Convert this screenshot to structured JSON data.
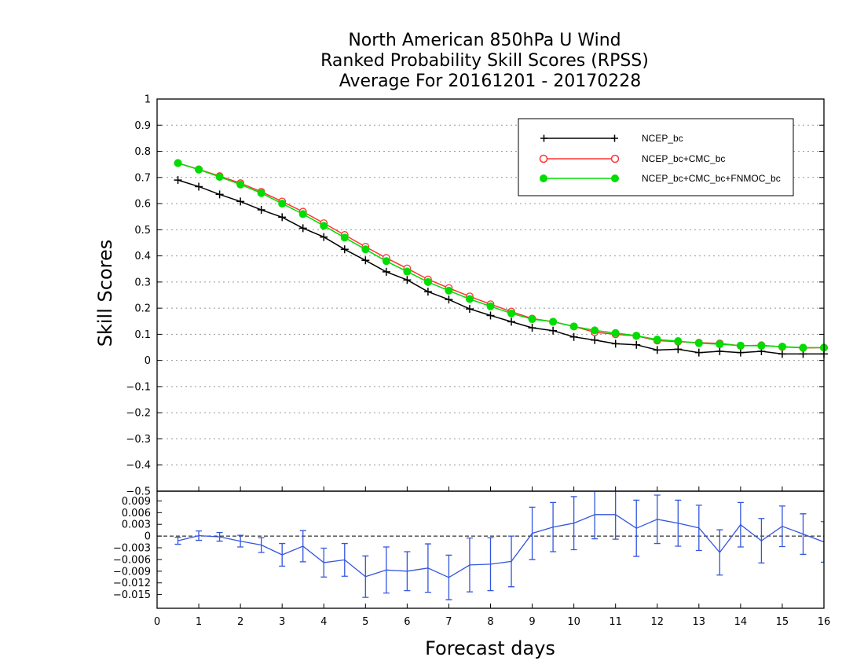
{
  "title_lines": [
    "North American 850hPa U Wind",
    "Ranked Probability Skill Scores (RPSS)",
    "Average For 20161201 - 20170228"
  ],
  "colors": {
    "ncep": "#000000",
    "ncep_cmc": "#ff3333",
    "ncep_cmc_fnmoc": "#00dd00",
    "diff": "#3355dd",
    "grid": "#999999"
  },
  "chart_data": [
    {
      "type": "line",
      "ylabel": "Skill Scores",
      "xlim": [
        0,
        16
      ],
      "ylim": [
        -0.5,
        1
      ],
      "grid": true,
      "legend_placement": "top-right",
      "yticks": [
        "1",
        "0.9",
        "0.8",
        "0.7",
        "0.6",
        "0.5",
        "0.4",
        "0.3",
        "0.2",
        "0.1",
        "0",
        "−0.1",
        "−0.2",
        "−0.3",
        "−0.4",
        "−0.5"
      ],
      "x": [
        0.5,
        1,
        1.5,
        2,
        2.5,
        3,
        3.5,
        4,
        4.5,
        5,
        5.5,
        6,
        6.5,
        7,
        7.5,
        8,
        8.5,
        9,
        9.5,
        10,
        10.5,
        11,
        11.5,
        12,
        12.5,
        13,
        13.5,
        14,
        14.5,
        15,
        15.5,
        16
      ],
      "series": [
        {
          "name": "NCEP_bc",
          "marker": "plus",
          "values": [
            0.69,
            0.665,
            0.635,
            0.608,
            0.576,
            0.548,
            0.506,
            0.472,
            0.425,
            0.383,
            0.339,
            0.308,
            0.263,
            0.233,
            0.197,
            0.172,
            0.148,
            0.125,
            0.114,
            0.09,
            0.078,
            0.064,
            0.06,
            0.04,
            0.043,
            0.03,
            0.035,
            0.03,
            0.035,
            0.025,
            0.025,
            0.025
          ]
        },
        {
          "name": "NCEP_bc+CMC_bc",
          "marker": "open-circle",
          "values": [
            0.755,
            0.731,
            0.705,
            0.678,
            0.645,
            0.608,
            0.569,
            0.525,
            0.48,
            0.435,
            0.392,
            0.352,
            0.31,
            0.277,
            0.245,
            0.215,
            0.187,
            0.16,
            0.148,
            0.13,
            0.108,
            0.1,
            0.094,
            0.076,
            0.072,
            0.068,
            0.065,
            0.056,
            0.058,
            0.052,
            0.048,
            0.049
          ]
        },
        {
          "name": "NCEP_bc+CMC_bc+FNMOC_bc",
          "marker": "filled-circle",
          "values": [
            0.755,
            0.73,
            0.702,
            0.673,
            0.64,
            0.6,
            0.56,
            0.515,
            0.47,
            0.425,
            0.38,
            0.34,
            0.3,
            0.267,
            0.235,
            0.207,
            0.18,
            0.158,
            0.148,
            0.13,
            0.115,
            0.105,
            0.095,
            0.08,
            0.074,
            0.066,
            0.062,
            0.057,
            0.056,
            0.053,
            0.049,
            0.049
          ]
        }
      ]
    },
    {
      "type": "line",
      "xlabel": "Forecast days",
      "xlim": [
        0,
        16
      ],
      "ylim": [
        -0.0185,
        0.0115
      ],
      "xticks": [
        "0",
        "1",
        "2",
        "3",
        "4",
        "5",
        "6",
        "7",
        "8",
        "9",
        "10",
        "11",
        "12",
        "13",
        "14",
        "15",
        "16"
      ],
      "yticks": [
        "0.009",
        "0.006",
        "0.003",
        "0",
        "−0.003",
        "−0.006",
        "−0.009",
        "−0.012",
        "−0.015"
      ],
      "reference_line": 0,
      "x": [
        0.5,
        1,
        1.5,
        2,
        2.5,
        3,
        3.5,
        4,
        4.5,
        5,
        5.5,
        6,
        6.5,
        7,
        7.5,
        8,
        8.5,
        9,
        9.5,
        10,
        10.5,
        11,
        11.5,
        12,
        12.5,
        13,
        13.5,
        14,
        14.5,
        15,
        15.5,
        16
      ],
      "series": [
        {
          "name": "",
          "error_bars": true,
          "values": [
            -0.0012,
            0.0001,
            -0.0002,
            -0.0013,
            -0.0023,
            -0.0048,
            -0.0026,
            -0.0068,
            -0.0061,
            -0.0104,
            -0.0087,
            -0.009,
            -0.0082,
            -0.0106,
            -0.0074,
            -0.0072,
            -0.0065,
            0.0007,
            0.0023,
            0.0033,
            0.0055,
            0.0055,
            0.002,
            0.0043,
            0.0033,
            0.0021,
            -0.0042,
            0.0029,
            -0.0012,
            0.0025,
            0.0005,
            -0.0015
          ],
          "errors": [
            0.0009,
            0.0012,
            0.0011,
            0.0015,
            0.0019,
            0.0029,
            0.004,
            0.0037,
            0.0042,
            0.0053,
            0.0059,
            0.005,
            0.0062,
            0.0057,
            0.0069,
            0.0068,
            0.0065,
            0.0067,
            0.0063,
            0.0068,
            0.0062,
            0.0063,
            0.0072,
            0.0062,
            0.0059,
            0.0058,
            0.0058,
            0.0057,
            0.0057,
            0.0052,
            0.0052,
            0.0052
          ]
        }
      ]
    }
  ]
}
